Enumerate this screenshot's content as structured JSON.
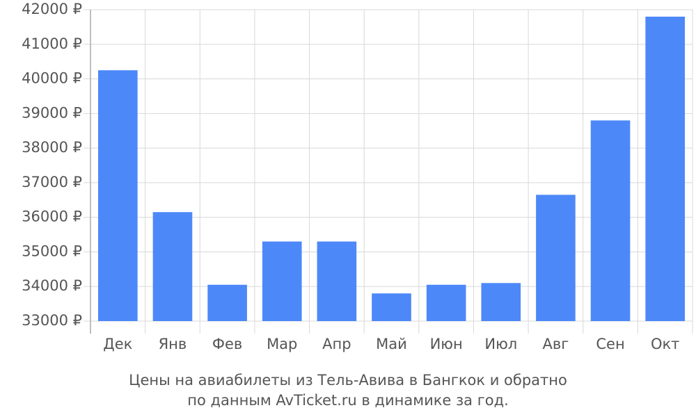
{
  "chart_data": {
    "type": "bar",
    "caption": [
      "Цены на авиабилеты из Тель-Авива в Бангкок и обратно",
      "по данным AvTicket.ru в динамике за год."
    ],
    "categories": [
      "Дек",
      "Янв",
      "Фев",
      "Мар",
      "Апр",
      "Май",
      "Июн",
      "Июл",
      "Авг",
      "Сен",
      "Окт"
    ],
    "values": [
      40250,
      36150,
      34050,
      35300,
      35300,
      33800,
      34050,
      34100,
      36650,
      38800,
      41800
    ],
    "color": "#4d88f9",
    "ylim": [
      33000,
      42000
    ],
    "yticks": [
      {
        "value": 33000,
        "label": "33000 ₽"
      },
      {
        "value": 34000,
        "label": "34000 ₽"
      },
      {
        "value": 35000,
        "label": "35000 ₽"
      },
      {
        "value": 36000,
        "label": "36000 ₽"
      },
      {
        "value": 37000,
        "label": "37000 ₽"
      },
      {
        "value": 38000,
        "label": "38000 ₽"
      },
      {
        "value": 39000,
        "label": "39000 ₽"
      },
      {
        "value": 40000,
        "label": "40000 ₽"
      },
      {
        "value": 41000,
        "label": "41000 ₽"
      },
      {
        "value": 42000,
        "label": "42000 ₽"
      }
    ],
    "grid": true
  }
}
